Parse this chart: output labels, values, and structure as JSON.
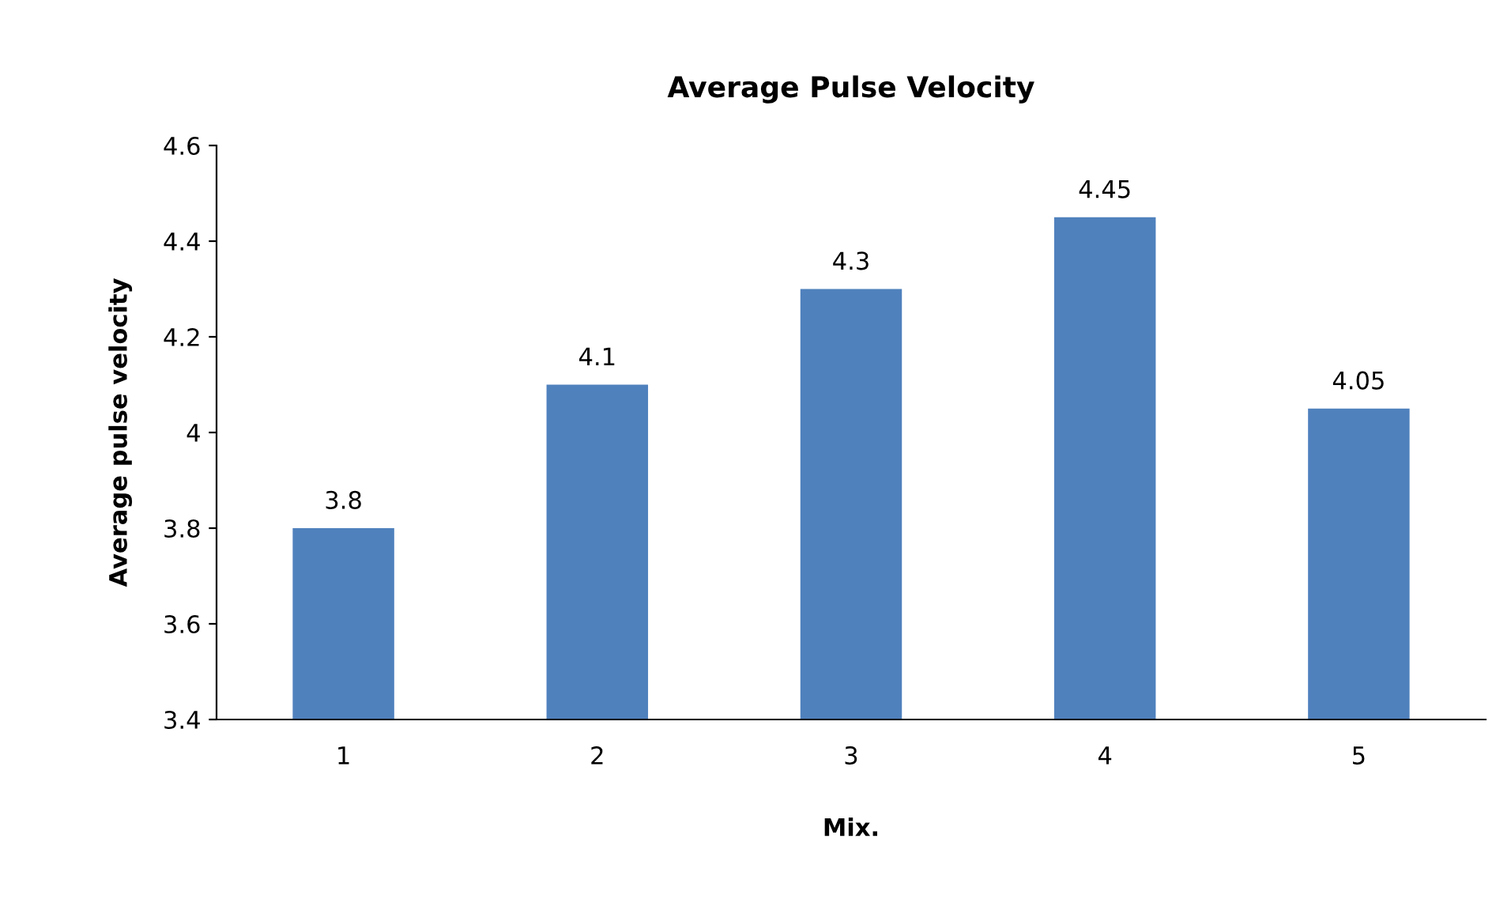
{
  "chart_data": {
    "type": "bar",
    "title": "Average Pulse Velocity",
    "xlabel": "Mix.",
    "ylabel": "Average pulse velocity",
    "categories": [
      "1",
      "2",
      "3",
      "4",
      "5"
    ],
    "values": [
      3.8,
      4.1,
      4.3,
      4.45,
      4.05
    ],
    "color": "#4f81bd",
    "ylim": [
      3.4,
      4.6
    ],
    "yticks": [
      3.4,
      3.6,
      3.8,
      4,
      4.2,
      4.4,
      4.6
    ],
    "grid": false,
    "data_labels": true
  }
}
